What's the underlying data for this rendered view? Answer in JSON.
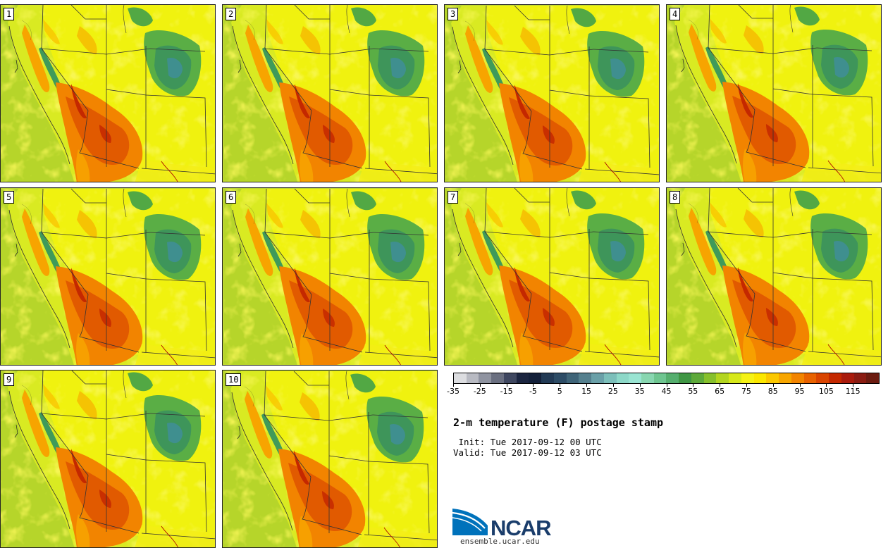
{
  "title": "2-m temperature (F) postage stamp",
  "init": " Init: Tue 2017-09-12 00 UTC",
  "valid": "Valid: Tue 2017-09-12 03 UTC",
  "logo_text": "NCAR",
  "logo_url": "ensemble.ucar.edu",
  "panels": [
    "1",
    "2",
    "3",
    "4",
    "5",
    "6",
    "7",
    "8",
    "9",
    "10"
  ],
  "colorbar": {
    "colors": [
      "#dcdde0",
      "#b8bac2",
      "#8f93a0",
      "#6a6f80",
      "#3f4760",
      "#1b2540",
      "#13203a",
      "#223a55",
      "#2d4c66",
      "#3f6478",
      "#55808e",
      "#6aa0a8",
      "#7cbfba",
      "#8dd8c8",
      "#99e4d2",
      "#88d6b0",
      "#6ec590",
      "#55ae6e",
      "#3f9644",
      "#5da93a",
      "#86c02c",
      "#b3d520",
      "#d7e81a",
      "#f5f216",
      "#fbe700",
      "#fbc800",
      "#f7a600",
      "#f28400",
      "#e86200",
      "#d94400",
      "#c42800",
      "#a91b0c",
      "#8a1c12",
      "#6b1b10"
    ],
    "tick_labels": [
      "-35",
      "-25",
      "-15",
      "-5",
      "5",
      "15",
      "25",
      "35",
      "45",
      "55",
      "65",
      "75",
      "85",
      "95",
      "105",
      "115"
    ],
    "tick_values": [
      -35,
      -25,
      -15,
      -5,
      5,
      15,
      25,
      35,
      45,
      55,
      65,
      75,
      85,
      95,
      105,
      115
    ],
    "min": -35,
    "max": 125
  }
}
